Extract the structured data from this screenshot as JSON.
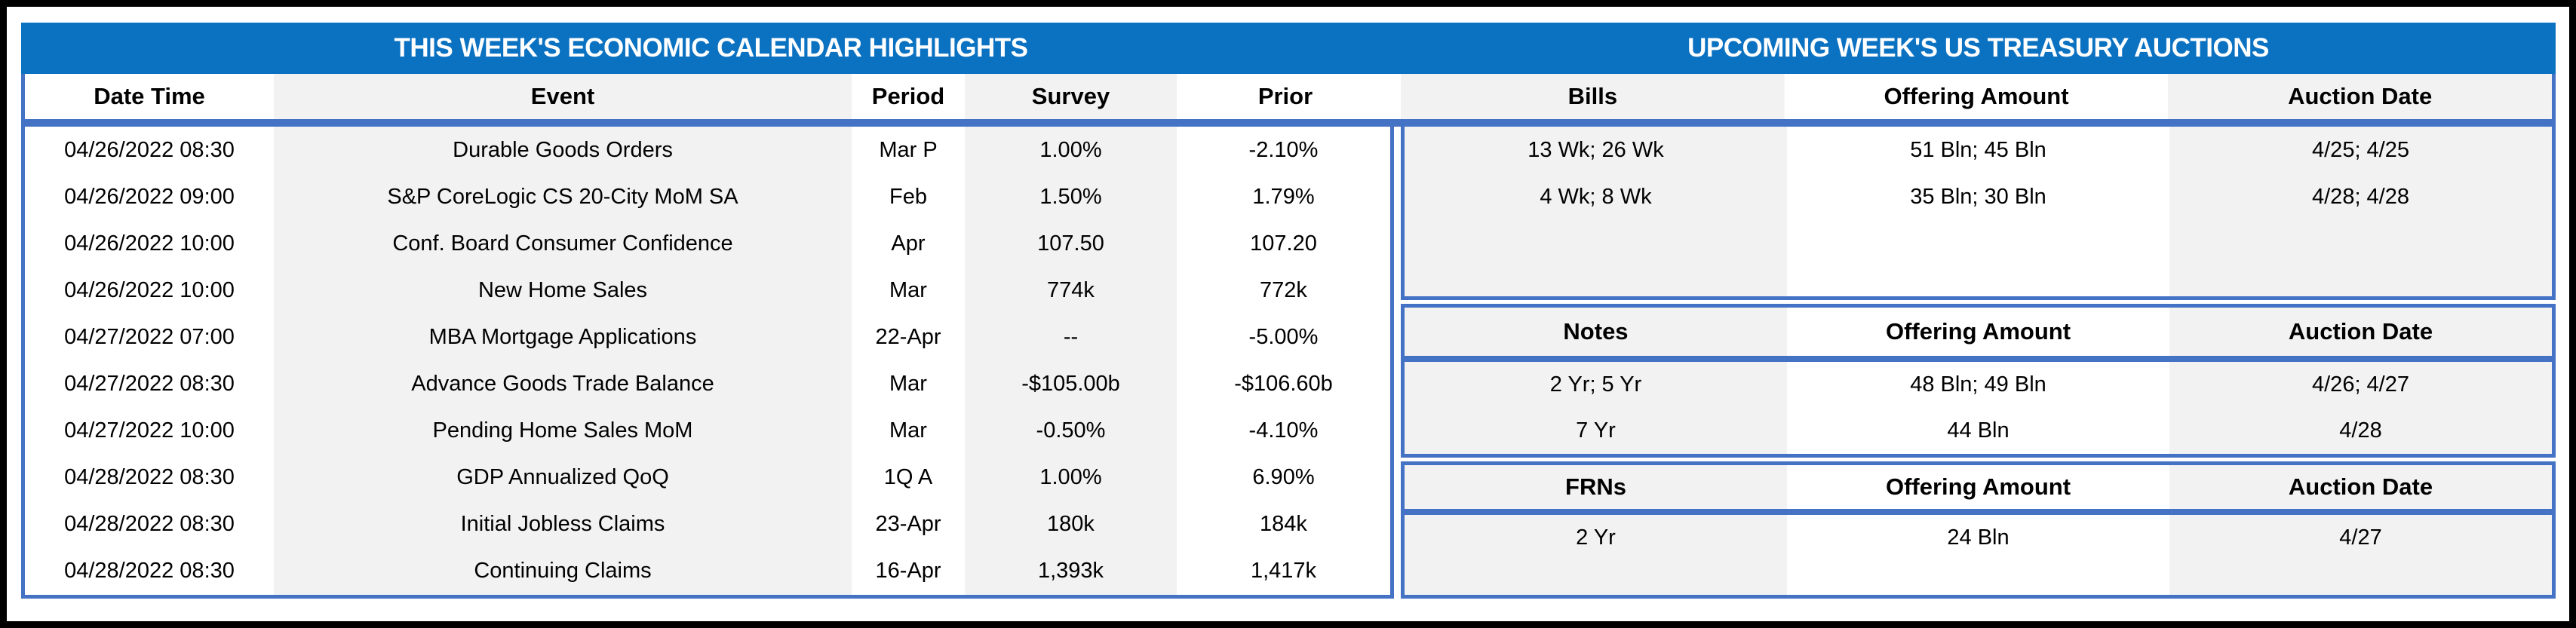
{
  "colors": {
    "band_blue": "#0b72c2",
    "border_blue": "#4472c4",
    "stripe_gray": "#f2f2f2",
    "frame_black": "#000000"
  },
  "calendar": {
    "title": "THIS WEEK'S ECONOMIC CALENDAR HIGHLIGHTS",
    "columns": [
      "Date Time",
      "Event",
      "Period",
      "Survey",
      "Prior"
    ],
    "rows": [
      [
        "04/26/2022 08:30",
        "Durable Goods Orders",
        "Mar P",
        "1.00%",
        "-2.10%"
      ],
      [
        "04/26/2022 09:00",
        "S&P CoreLogic CS 20-City MoM SA",
        "Feb",
        "1.50%",
        "1.79%"
      ],
      [
        "04/26/2022 10:00",
        "Conf. Board Consumer Confidence",
        "Apr",
        "107.50",
        "107.20"
      ],
      [
        "04/26/2022 10:00",
        "New Home Sales",
        "Mar",
        "774k",
        "772k"
      ],
      [
        "04/27/2022 07:00",
        "MBA Mortgage Applications",
        "22-Apr",
        "--",
        "-5.00%"
      ],
      [
        "04/27/2022 08:30",
        "Advance Goods Trade Balance",
        "Mar",
        "-$105.00b",
        "-$106.60b"
      ],
      [
        "04/27/2022 10:00",
        "Pending Home Sales MoM",
        "Mar",
        "-0.50%",
        "-4.10%"
      ],
      [
        "04/28/2022 08:30",
        "GDP Annualized QoQ",
        "1Q A",
        "1.00%",
        "6.90%"
      ],
      [
        "04/28/2022 08:30",
        "Initial Jobless Claims",
        "23-Apr",
        "180k",
        "184k"
      ],
      [
        "04/28/2022 08:30",
        "Continuing Claims",
        "16-Apr",
        "1,393k",
        "1,417k"
      ]
    ]
  },
  "auctions": {
    "title": "UPCOMING WEEK'S US TREASURY AUCTIONS",
    "bills": {
      "columns": [
        "Bills",
        "Offering Amount",
        "Auction Date"
      ],
      "rows": [
        [
          "13 Wk; 26 Wk",
          "51 Bln; 45 Bln",
          "4/25; 4/25"
        ],
        [
          "4 Wk; 8 Wk",
          "35 Bln; 30 Bln",
          "4/28; 4/28"
        ]
      ]
    },
    "notes": {
      "columns": [
        "Notes",
        "Offering Amount",
        "Auction Date"
      ],
      "rows": [
        [
          "2 Yr; 5 Yr",
          "48 Bln; 49 Bln",
          "4/26; 4/27"
        ],
        [
          "7 Yr",
          "44 Bln",
          "4/28"
        ]
      ]
    },
    "frns": {
      "columns": [
        "FRNs",
        "Offering Amount",
        "Auction Date"
      ],
      "rows": [
        [
          "2 Yr",
          "24 Bln",
          "4/27"
        ]
      ]
    }
  }
}
